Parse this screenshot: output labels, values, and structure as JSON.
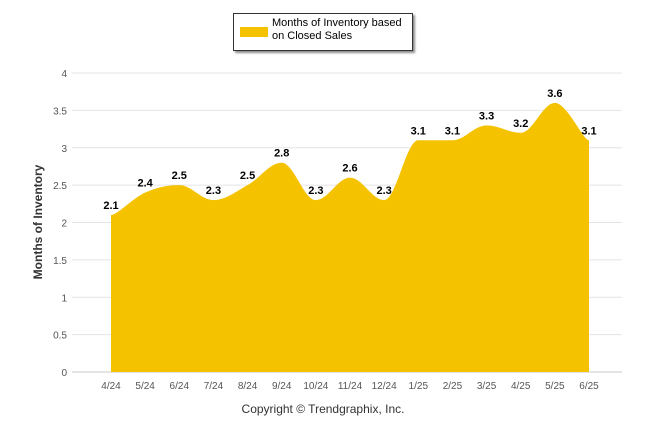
{
  "chart_data": {
    "type": "area",
    "categories": [
      "4/24",
      "5/24",
      "6/24",
      "7/24",
      "8/24",
      "9/24",
      "10/24",
      "11/24",
      "12/24",
      "1/25",
      "2/25",
      "3/25",
      "4/25",
      "5/25",
      "6/25"
    ],
    "series": [
      {
        "name": "Months of Inventory based on Closed Sales",
        "values": [
          2.1,
          2.4,
          2.5,
          2.3,
          2.5,
          2.8,
          2.3,
          2.6,
          2.3,
          3.1,
          3.1,
          3.3,
          3.2,
          3.6,
          3.1
        ]
      }
    ],
    "data_labels": [
      "2.1",
      "2.4",
      "2.5",
      "2.3",
      "2.5",
      "2.8",
      "2.3",
      "2.6",
      "2.3",
      "3.1",
      "3.1",
      "3.3",
      "3.2",
      "3.6",
      "3.1"
    ],
    "ylabel": "Months of Inventory",
    "xlabel": "",
    "ylim": [
      0,
      4
    ],
    "yticks": [
      0,
      0.5,
      1,
      1.5,
      2,
      2.5,
      3,
      3.5,
      4
    ],
    "ytick_labels": [
      "0",
      "0.5",
      "1",
      "1.5",
      "2",
      "2.5",
      "3",
      "3.5",
      "4"
    ],
    "grid": true,
    "legend_position": "top-center",
    "fill_color": "#F5C200"
  },
  "legend": {
    "label": "Months of Inventory based on Closed Sales"
  },
  "footer": {
    "copyright": "Copyright © Trendgraphix, Inc."
  }
}
